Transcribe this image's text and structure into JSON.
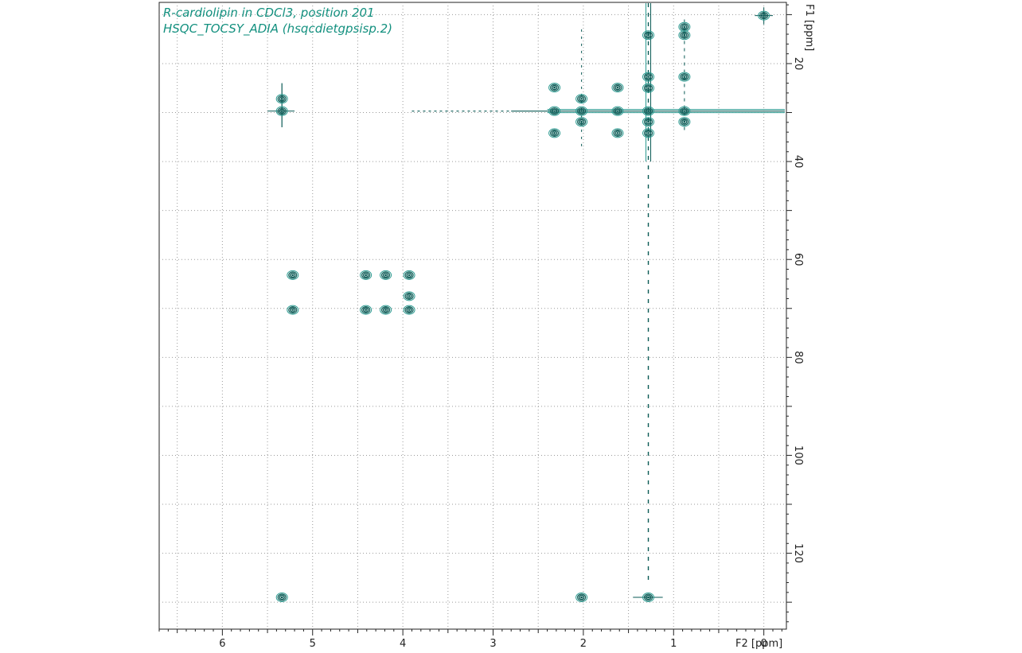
{
  "chart_data": {
    "type": "scatter",
    "title": "R-cardiolipin in CDCl3, position 201",
    "subtitle": "HSQC_TOCSY_ADIA (hsqcdietgpsisp.2)",
    "xlabel": "F2 [ppm]",
    "ylabel": "F1 [ppm]",
    "xlim": [
      6.7,
      -0.25
    ],
    "ylim": [
      7.5,
      135.5
    ],
    "xticks": [
      6,
      5,
      4,
      3,
      2,
      1,
      0
    ],
    "yticks": [
      20,
      40,
      60,
      80,
      100,
      120
    ],
    "grid": true,
    "colors": {
      "contour": "#0a5a55",
      "contour_light": "#2a9a90",
      "title": "#13907f",
      "grid": "#9a9a9a"
    },
    "series": [
      {
        "values": [
          {
            "x": 0.0,
            "y": 10.2
          },
          {
            "x": 0.88,
            "y": 12.5
          },
          {
            "x": 1.28,
            "y": 14.2
          },
          {
            "x": 0.88,
            "y": 14.2
          },
          {
            "x": 0.88,
            "y": 22.7
          },
          {
            "x": 1.28,
            "y": 22.7
          },
          {
            "x": 2.32,
            "y": 24.9
          },
          {
            "x": 2.02,
            "y": 27.2
          },
          {
            "x": 1.62,
            "y": 24.9
          },
          {
            "x": 1.28,
            "y": 25.0
          },
          {
            "x": 5.34,
            "y": 27.2
          },
          {
            "x": 5.34,
            "y": 29.7
          },
          {
            "x": 2.32,
            "y": 29.7
          },
          {
            "x": 2.02,
            "y": 29.7
          },
          {
            "x": 1.62,
            "y": 29.7
          },
          {
            "x": 1.28,
            "y": 29.7
          },
          {
            "x": 0.88,
            "y": 29.7
          },
          {
            "x": 2.02,
            "y": 31.9
          },
          {
            "x": 1.28,
            "y": 31.9
          },
          {
            "x": 0.88,
            "y": 31.9
          },
          {
            "x": 2.32,
            "y": 34.2
          },
          {
            "x": 1.62,
            "y": 34.2
          },
          {
            "x": 1.28,
            "y": 34.2
          },
          {
            "x": 5.22,
            "y": 63.2
          },
          {
            "x": 4.41,
            "y": 63.2
          },
          {
            "x": 4.19,
            "y": 63.2
          },
          {
            "x": 3.93,
            "y": 63.2
          },
          {
            "x": 3.93,
            "y": 67.5
          },
          {
            "x": 5.22,
            "y": 70.3
          },
          {
            "x": 4.41,
            "y": 70.3
          },
          {
            "x": 4.19,
            "y": 70.3
          },
          {
            "x": 3.93,
            "y": 70.3
          },
          {
            "x": 5.34,
            "y": 129.0
          },
          {
            "x": 2.02,
            "y": 129.0
          },
          {
            "x": 1.28,
            "y": 129.0
          }
        ]
      }
    ]
  }
}
